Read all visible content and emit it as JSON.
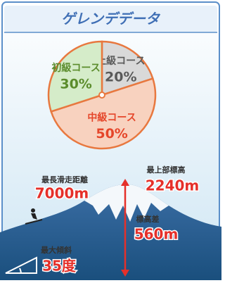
{
  "header": {
    "title": "ゲレンデデータ"
  },
  "chart_data": {
    "type": "pie",
    "categories": [
      "上級コース",
      "中級コース",
      "初級コース"
    ],
    "values": [
      20,
      50,
      30
    ],
    "value_labels": [
      "20%",
      "50%",
      "30%"
    ],
    "colors": [
      "#d9d9d9",
      "#f8d2bf",
      "#d5ecc9"
    ],
    "label_colors": [
      "#5a5a5a",
      "#e5462a",
      "#5b8c2c"
    ]
  },
  "stats": [
    {
      "label": "最長滑走距離",
      "value": "7000m"
    },
    {
      "label": "最上部標高",
      "value": "2240m"
    },
    {
      "label": "標高差",
      "value": "560m"
    },
    {
      "label": "最大傾斜",
      "value": "35度"
    }
  ]
}
